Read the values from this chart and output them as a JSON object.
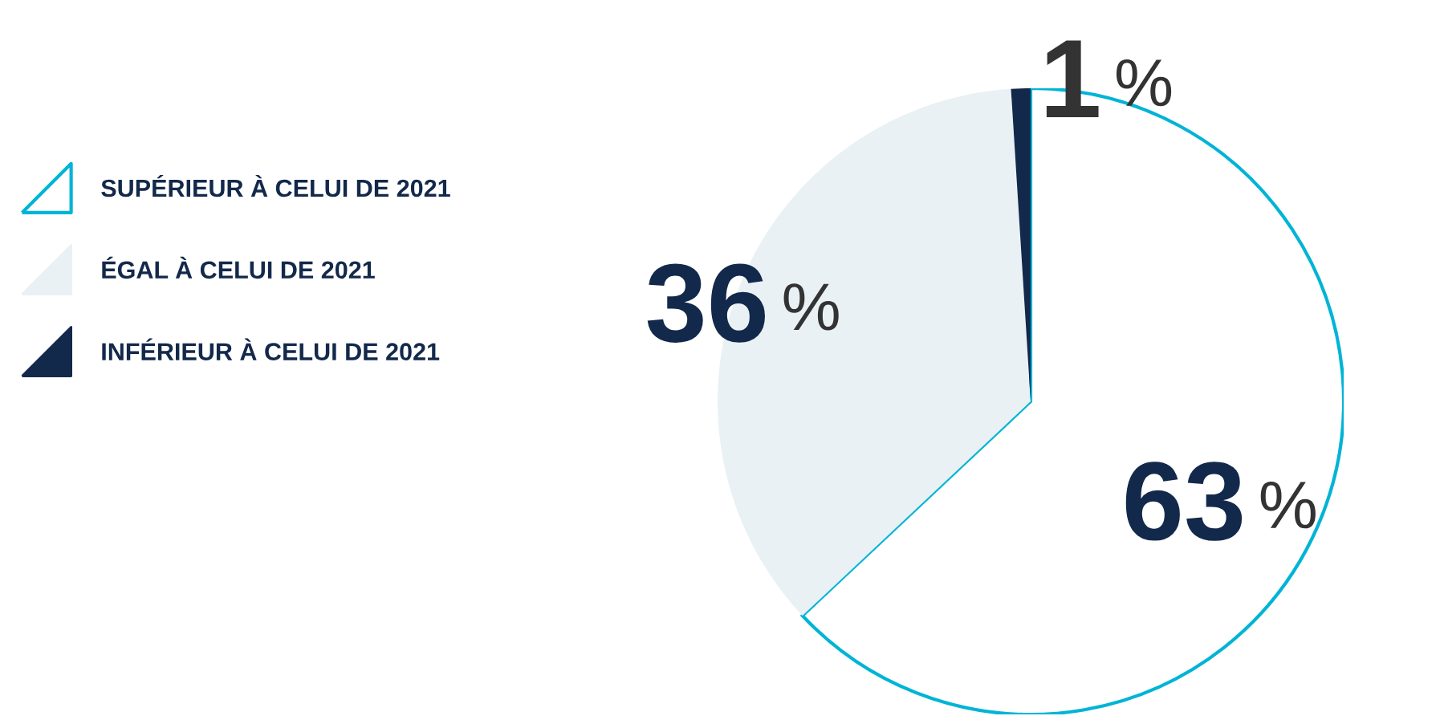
{
  "chart_data": {
    "type": "pie",
    "categories": [
      "SUPÉRIEUR À CELUI DE 2021",
      "ÉGAL À CELUI DE 2021",
      "INFÉRIEUR À CELUI DE 2021"
    ],
    "values": [
      63,
      36,
      1
    ],
    "colors": [
      "#00b4d6",
      "#e9f1f4",
      "#13294b"
    ],
    "value_labels": [
      "63 %",
      "36 %",
      "1 %"
    ],
    "legend": "left"
  }
}
